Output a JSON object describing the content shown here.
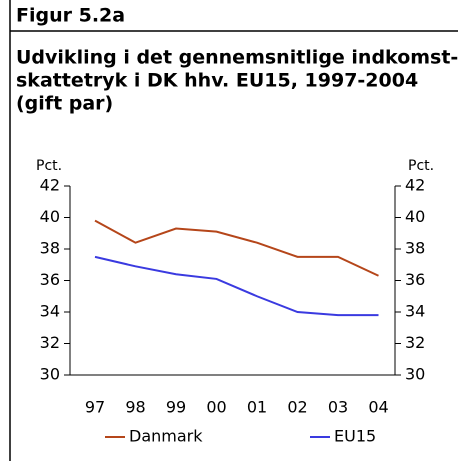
{
  "chart_data": {
    "type": "line",
    "figure_label": "Figur 5.2a",
    "title": [
      "Udvikling i det gennemsnitlige indkomst-",
      "skattetryk i DK hhv. EU15, 1997-2004",
      "(gift par)"
    ],
    "y_label": "Pct.",
    "y2_label": "Pct.",
    "categories": [
      "97",
      "98",
      "99",
      "00",
      "01",
      "02",
      "03",
      "04"
    ],
    "series": [
      {
        "name": "Danmark",
        "color": "#b5461a",
        "values": [
          39.8,
          38.4,
          39.3,
          39.1,
          38.4,
          37.5,
          37.5,
          36.3
        ]
      },
      {
        "name": "EU15",
        "color": "#3a3ae0",
        "values": [
          37.5,
          36.9,
          36.4,
          36.1,
          35.0,
          34.0,
          33.8,
          33.8
        ]
      }
    ],
    "ylim": [
      30,
      42
    ],
    "yticks": [
      30,
      32,
      34,
      36,
      38,
      40,
      42
    ],
    "y2lim": [
      30,
      42
    ],
    "y2ticks": [
      30,
      32,
      34,
      36,
      38,
      40,
      42
    ],
    "grid": false
  }
}
